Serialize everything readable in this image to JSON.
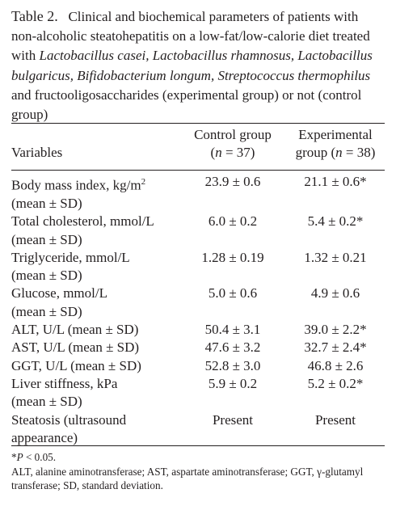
{
  "caption": {
    "table_label": "Table 2.",
    "segments": [
      {
        "text": "Clinical and biochemical parameters of patients with non-alcoholic steatohepatitis on a low-fat/low-calorie diet treated with ",
        "italic": false
      },
      {
        "text": "Lactobacillus casei, Lactobacillus rhamnosus, Lactobacillus bulgaricus, Bifidobacterium longum, Streptococcus thermophilus",
        "italic": true
      },
      {
        "text": " and fructooligosaccharides (experimental group) or not (control group)",
        "italic": false
      }
    ]
  },
  "header": {
    "variables": "Variables",
    "control_line1": "Control group",
    "control_line2_open": "(",
    "control_n": "n",
    "control_line2_close": " = 37)",
    "experimental_line1": "Experimental",
    "experimental_line2_open": "group (",
    "experimental_n": "n",
    "experimental_line2_close": " = 38)"
  },
  "rows": [
    {
      "label": "Body mass index, kg/m",
      "sup": "2",
      "label2": "(mean ± SD)",
      "control": "23.9 ± 0.6",
      "experimental": "21.1 ± 0.6*"
    },
    {
      "label": "Total cholesterol, mmol/L",
      "sup": "",
      "label2": "(mean ± SD)",
      "control": "6.0 ± 0.2",
      "experimental": "5.4 ± 0.2*"
    },
    {
      "label": "Triglyceride, mmol/L",
      "sup": "",
      "label2": "(mean ± SD)",
      "control": "1.28 ± 0.19",
      "experimental": "1.32 ± 0.21"
    },
    {
      "label": "Glucose, mmol/L",
      "sup": "",
      "label2": "(mean ± SD)",
      "control": "5.0 ± 0.6",
      "experimental": "4.9 ± 0.6"
    },
    {
      "label": "ALT, U/L (mean ± SD)",
      "sup": "",
      "label2": "",
      "control": "50.4 ± 3.1",
      "experimental": "39.0 ± 2.2*"
    },
    {
      "label": "AST, U/L (mean ± SD)",
      "sup": "",
      "label2": "",
      "control": "47.6 ± 3.2",
      "experimental": "32.7 ± 2.4*"
    },
    {
      "label": "GGT, U/L (mean ± SD)",
      "sup": "",
      "label2": "",
      "control": "52.8 ± 3.0",
      "experimental": "46.8 ± 2.6"
    },
    {
      "label": "Liver stiffness, kPa",
      "sup": "",
      "label2": "(mean ± SD)",
      "control": "5.9 ± 0.2",
      "experimental": "5.2 ± 0.2*"
    },
    {
      "label": "Steatosis (ultrasound",
      "sup": "",
      "label2": "appearance)",
      "control": "Present",
      "experimental": "Present"
    }
  ],
  "footnotes": {
    "significance_marker": "*",
    "significance_p": "P",
    "significance_rest": " < 0.05.",
    "abbreviations": "ALT, alanine aminotransferase; AST, aspartate aminotransferase; GGT, γ-glutamyl transferase; SD, standard deviation."
  }
}
